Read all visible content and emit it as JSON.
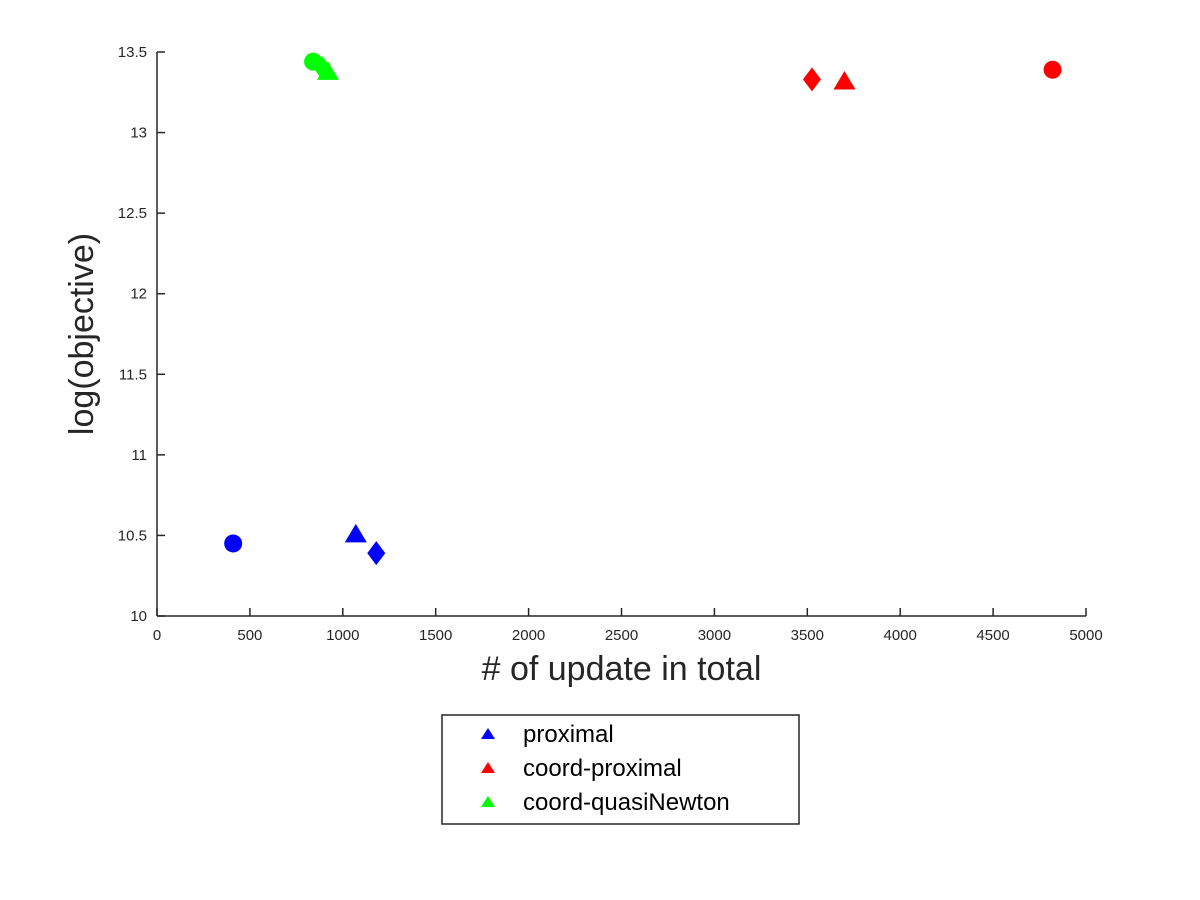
{
  "chart_data": {
    "type": "scatter",
    "title": "",
    "xlabel": "# of update in total",
    "ylabel": "log(objective)",
    "xlim": [
      0,
      5000
    ],
    "ylim": [
      10,
      13.5
    ],
    "xticks": [
      0,
      500,
      1000,
      1500,
      2000,
      2500,
      3000,
      3500,
      4000,
      4500,
      5000
    ],
    "yticks": [
      10,
      10.5,
      11,
      11.5,
      12,
      12.5,
      13,
      13.5
    ],
    "grid": false,
    "legend_position": "bottom-center-outside",
    "series": [
      {
        "name": "proximal",
        "color": "#0000ff",
        "points": [
          {
            "x": 410,
            "y": 10.45,
            "marker": "circle"
          },
          {
            "x": 1070,
            "y": 10.51,
            "marker": "triangle"
          },
          {
            "x": 1180,
            "y": 10.39,
            "marker": "diamond"
          }
        ]
      },
      {
        "name": "coord-proximal",
        "color": "#ff0000",
        "points": [
          {
            "x": 4820,
            "y": 13.39,
            "marker": "circle"
          },
          {
            "x": 3700,
            "y": 13.32,
            "marker": "triangle"
          },
          {
            "x": 3525,
            "y": 13.33,
            "marker": "diamond"
          }
        ]
      },
      {
        "name": "coord-quasiNewton",
        "color": "#00ff00",
        "points": [
          {
            "x": 840,
            "y": 13.44,
            "marker": "circle"
          },
          {
            "x": 920,
            "y": 13.38,
            "marker": "triangle"
          },
          {
            "x": 890,
            "y": 13.4,
            "marker": "diamond"
          }
        ]
      }
    ]
  }
}
